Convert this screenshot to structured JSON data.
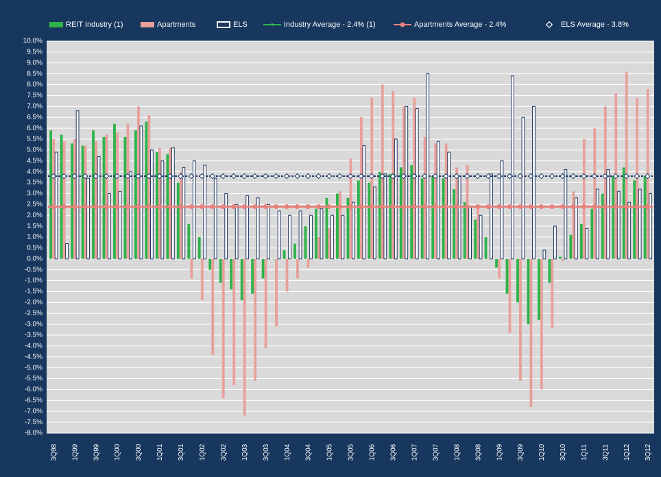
{
  "chart_data": {
    "type": "bar",
    "categories": [
      "3Q98",
      null,
      "1Q99",
      null,
      "3Q99",
      null,
      "1Q00",
      null,
      "3Q00",
      null,
      "1Q01",
      null,
      "3Q01",
      null,
      "1Q02",
      null,
      "3Q02",
      null,
      "1Q03",
      null,
      "3Q03",
      null,
      "1Q04",
      null,
      "3Q04",
      null,
      "1Q05",
      null,
      "3Q05",
      null,
      "1Q06",
      null,
      "3Q06",
      null,
      "1Q07",
      null,
      "3Q07",
      null,
      "1Q08",
      null,
      "3Q08",
      null,
      "1Q09",
      null,
      "3Q09",
      null,
      "1Q10",
      null,
      "3Q10",
      null,
      "1Q11",
      null,
      "3Q11",
      null,
      "1Q12",
      null,
      "3Q12"
    ],
    "series": [
      {
        "name": "REIT Industry (1)",
        "color": "#2db34a",
        "values": [
          5.9,
          5.7,
          5.3,
          5.2,
          5.9,
          5.6,
          6.2,
          5.6,
          5.9,
          6.3,
          4.9,
          4.8,
          3.5,
          1.6,
          1.0,
          -0.5,
          -1.1,
          -1.4,
          -1.9,
          -1.6,
          -0.9,
          0.0,
          0.4,
          0.7,
          1.5,
          2.3,
          2.8,
          3.0,
          2.8,
          3.6,
          3.5,
          4.0,
          3.9,
          4.2,
          4.3,
          3.7,
          3.8,
          3.7,
          3.2,
          2.6,
          1.8,
          1.0,
          -0.4,
          -1.6,
          -2.0,
          -3.0,
          -2.8,
          -1.1,
          0.1,
          1.1,
          1.6,
          2.3,
          3.0,
          3.8,
          4.2,
          3.6,
          3.8
        ]
      },
      {
        "name": "Apartments",
        "color": "#e8a09a",
        "values": [
          5.5,
          5.4,
          5.5,
          5.2,
          5.4,
          5.7,
          5.8,
          6.2,
          7.0,
          6.6,
          5.1,
          5.1,
          4.0,
          -0.9,
          -1.9,
          -4.4,
          -6.4,
          -5.8,
          -7.2,
          -5.6,
          -4.1,
          -3.1,
          -1.5,
          -0.9,
          -0.4,
          1.0,
          1.4,
          3.1,
          4.6,
          6.5,
          7.4,
          8.0,
          7.7,
          7.0,
          7.4,
          5.6,
          5.3,
          5.3,
          4.2,
          4.3,
          2.4,
          0.0,
          -0.9,
          -3.4,
          -5.6,
          -6.8,
          -6.0,
          -3.2,
          -0.1,
          3.1,
          5.5,
          6.0,
          7.0,
          7.6,
          8.6,
          7.4,
          7.8
        ]
      },
      {
        "name": "ELS",
        "color": "#1f3864",
        "values": [
          4.9,
          0.7,
          6.8,
          3.7,
          4.7,
          3.0,
          3.1,
          4.0,
          6.1,
          5.0,
          4.5,
          5.1,
          4.2,
          4.5,
          4.3,
          3.7,
          3.0,
          2.5,
          2.9,
          2.8,
          2.5,
          2.2,
          2.0,
          2.2,
          2.0,
          2.3,
          2.0,
          2.0,
          2.6,
          5.2,
          3.3,
          3.9,
          5.5,
          7.0,
          6.9,
          8.5,
          5.4,
          4.9,
          3.8,
          2.4,
          2.0,
          3.9,
          4.5,
          8.4,
          6.5,
          7.0,
          0.4,
          1.5,
          4.1,
          2.8,
          1.4,
          3.2,
          4.1,
          3.1,
          2.6,
          3.2,
          3.0
        ]
      }
    ],
    "lines": [
      {
        "name": "Industry Average - 2.4% (1)",
        "color": "#2db34a",
        "value": 2.4
      },
      {
        "name": "Apartments Average - 2.4%",
        "color": "#e8827c",
        "value": 2.4
      },
      {
        "name": "ELS Average - 3.8%",
        "color": "#1f3864",
        "value": 3.8
      }
    ],
    "ylim": [
      -8,
      10
    ],
    "yticks": [
      {
        "value": -8,
        "label": "-8.0%"
      },
      {
        "value": -7.5,
        "label": "-7.5%"
      },
      {
        "value": -7,
        "label": "-7.0%"
      },
      {
        "value": -6.5,
        "label": "-6.5%"
      },
      {
        "value": -6,
        "label": "-6.0%"
      },
      {
        "value": -5.5,
        "label": "-5.5%"
      },
      {
        "value": -5,
        "label": "-5.0%"
      },
      {
        "value": -4.5,
        "label": "-4.5%"
      },
      {
        "value": -4,
        "label": "-4.0%"
      },
      {
        "value": -3.5,
        "label": "-3.5%"
      },
      {
        "value": -3,
        "label": "-3.0%"
      },
      {
        "value": -2.5,
        "label": "-2.5%"
      },
      {
        "value": -2,
        "label": "-2.0%"
      },
      {
        "value": -1.5,
        "label": "-1.5%"
      },
      {
        "value": -1,
        "label": "-1.0%"
      },
      {
        "value": -0.5,
        "label": "-0.5%"
      },
      {
        "value": 0,
        "label": "0.0%"
      },
      {
        "value": 0.5,
        "label": "0.5%"
      },
      {
        "value": 1,
        "label": "1.0%"
      },
      {
        "value": 1.5,
        "label": "1.5%"
      },
      {
        "value": 2,
        "label": "2.0%"
      },
      {
        "value": 2.5,
        "label": "2.5%"
      },
      {
        "value": 3,
        "label": "3.0%"
      },
      {
        "value": 3.5,
        "label": "3.5%"
      },
      {
        "value": 4,
        "label": "4.0%"
      },
      {
        "value": 4.5,
        "label": "4.5%"
      },
      {
        "value": 5,
        "label": "5.0%"
      },
      {
        "value": 5.5,
        "label": "5.5%"
      },
      {
        "value": 6,
        "label": "6.0%"
      },
      {
        "value": 6.5,
        "label": "6.5%"
      },
      {
        "value": 7,
        "label": "7.0%"
      },
      {
        "value": 7.5,
        "label": "7.5%"
      },
      {
        "value": 8,
        "label": "8.0%"
      },
      {
        "value": 8.5,
        "label": "8.5%"
      },
      {
        "value": 9,
        "label": "9.0%"
      },
      {
        "value": 9.5,
        "label": "9.5%"
      },
      {
        "value": 10,
        "label": "10.0%"
      }
    ],
    "grid": true
  }
}
